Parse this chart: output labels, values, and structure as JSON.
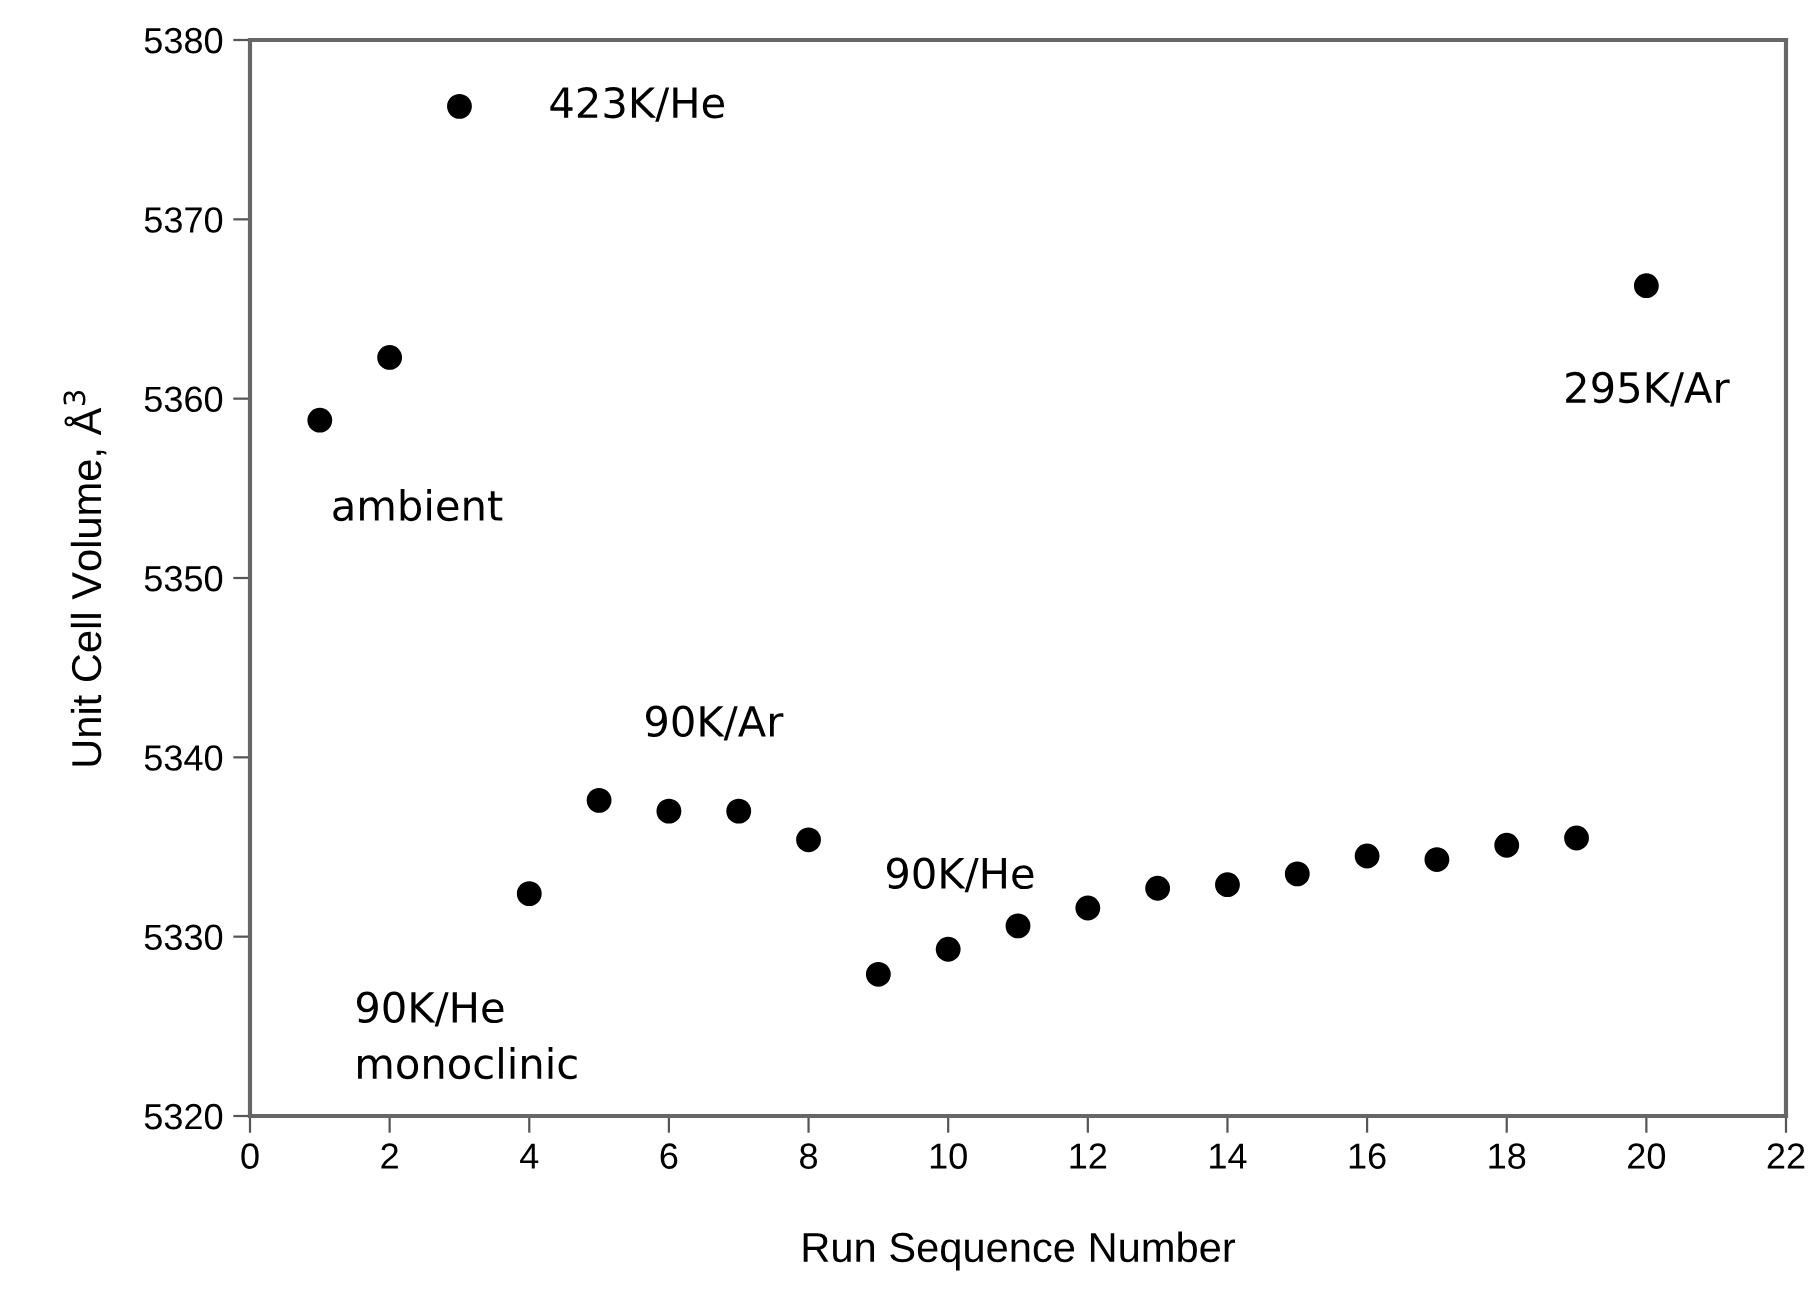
{
  "chart_data": {
    "type": "scatter",
    "xlabel": "Run Sequence Number",
    "ylabel": "Unit Cell Volume, Å$^{3}$",
    "x": [
      1,
      2,
      3,
      4,
      5,
      6,
      7,
      8,
      9,
      10,
      11,
      12,
      13,
      14,
      15,
      16,
      17,
      18,
      19,
      20
    ],
    "values": [
      5358.8,
      5362.3,
      5376.3,
      5332.4,
      5337.6,
      5337.0,
      5337.0,
      5335.4,
      5327.9,
      5329.3,
      5330.6,
      5331.6,
      5332.7,
      5332.9,
      5333.5,
      5334.5,
      5334.3,
      5335.1,
      5335.5,
      5366.3
    ],
    "color": "#000000",
    "marker": "circle",
    "grid": false,
    "legend": false,
    "xlim": [
      0,
      22
    ],
    "xticks": [
      0,
      2,
      4,
      6,
      8,
      10,
      12,
      14,
      16,
      18,
      20,
      22
    ],
    "ylim": [
      5320,
      5380
    ],
    "yticks": [
      5320,
      5330,
      5340,
      5350,
      5360,
      5370,
      5380
    ],
    "annotations": [
      {
        "text": "423K/He",
        "x": 3,
        "y": 5376.3
      },
      {
        "text": "ambient",
        "x": 1,
        "y": 5358.8
      },
      {
        "text": "295K/Ar",
        "x": 20,
        "y": 5366.3
      },
      {
        "text": "90K/Ar",
        "x": 6,
        "y": 5337.0
      },
      {
        "text": "90K/He",
        "x": 10,
        "y": 5329.3
      },
      {
        "text": "90K/He\nmonoclinic",
        "x": 4,
        "y": 5332.4
      }
    ]
  }
}
